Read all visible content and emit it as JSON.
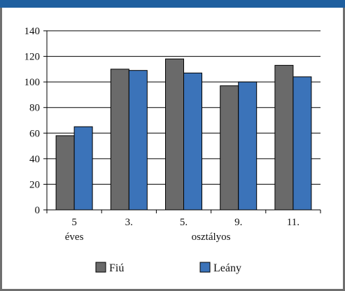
{
  "chart_data": {
    "type": "bar",
    "title": "",
    "xlabel": "",
    "ylabel": "",
    "ylim": [
      0,
      140
    ],
    "yticks": [
      0,
      20,
      40,
      60,
      80,
      100,
      120,
      140
    ],
    "categories": [
      "5",
      "3.",
      "5.",
      "9.",
      "11."
    ],
    "category_group_labels": [
      "éves",
      "osztályos"
    ],
    "series": [
      {
        "name": "Fiú",
        "color": "#6a6a6a",
        "values": [
          58,
          110,
          118,
          97,
          113
        ]
      },
      {
        "name": "Leány",
        "color": "#3b73b9",
        "values": [
          65,
          109,
          107,
          100,
          104
        ]
      }
    ],
    "grid": "horizontal",
    "legend_position": "bottom"
  },
  "colors": {
    "top_bar": "#1f5f9f",
    "frame": "#6f6f6f"
  }
}
